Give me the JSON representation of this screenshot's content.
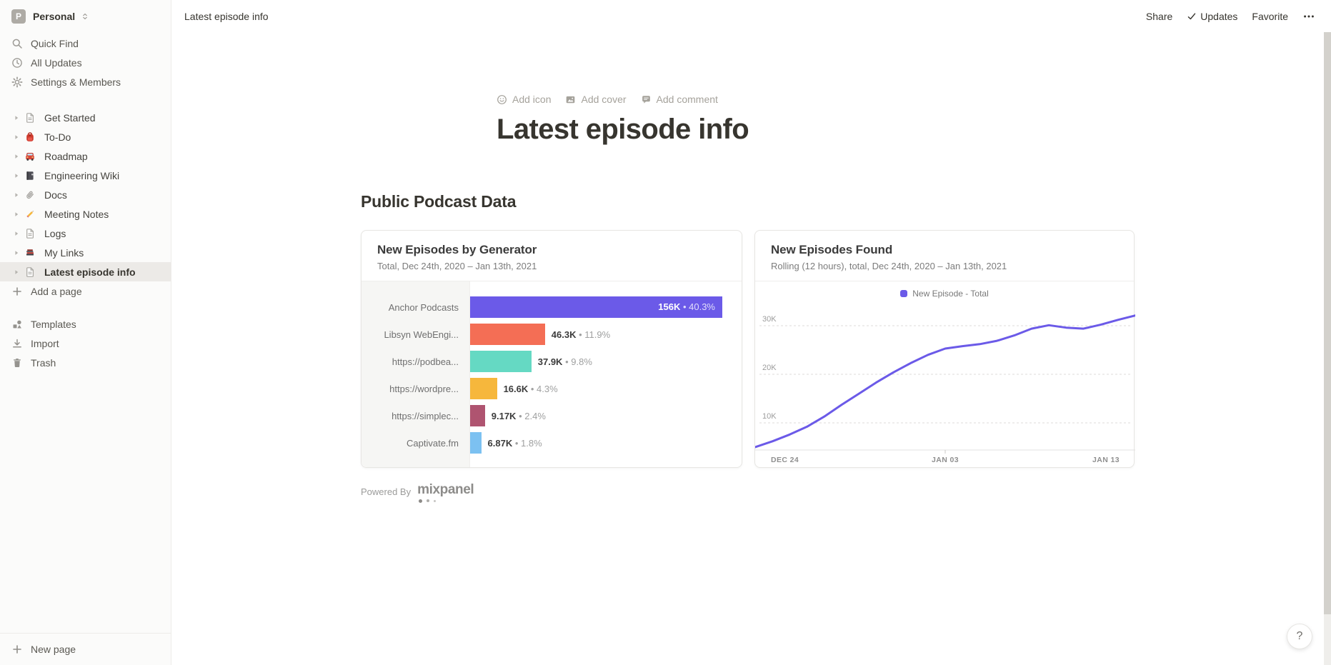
{
  "topbar": {
    "breadcrumb": "Latest episode info",
    "share_label": "Share",
    "updates_label": "Updates",
    "favorite_label": "Favorite"
  },
  "sidebar": {
    "workspace": {
      "name": "Personal",
      "initial": "P"
    },
    "menu": [
      {
        "label": "Quick Find",
        "icon": "search"
      },
      {
        "label": "All Updates",
        "icon": "clock"
      },
      {
        "label": "Settings & Members",
        "icon": "gear"
      }
    ],
    "pages": [
      {
        "label": "Get Started",
        "icon": "page",
        "selected": false
      },
      {
        "label": "To-Do",
        "icon": "backpack",
        "selected": false
      },
      {
        "label": "Roadmap",
        "icon": "car",
        "selected": false
      },
      {
        "label": "Engineering Wiki",
        "icon": "notebook",
        "selected": false
      },
      {
        "label": "Docs",
        "icon": "paperclip",
        "selected": false
      },
      {
        "label": "Meeting Notes",
        "icon": "pencil",
        "selected": false
      },
      {
        "label": "Logs",
        "icon": "page",
        "selected": false
      },
      {
        "label": "My Links",
        "icon": "books",
        "selected": false
      },
      {
        "label": "Latest episode info",
        "icon": "page",
        "selected": true
      }
    ],
    "add_page": "Add a page",
    "footer": [
      {
        "label": "Templates",
        "icon": "templates"
      },
      {
        "label": "Import",
        "icon": "import"
      },
      {
        "label": "Trash",
        "icon": "trash"
      }
    ],
    "new_page": "New page"
  },
  "page": {
    "actions": [
      {
        "label": "Add icon",
        "icon": "smiley"
      },
      {
        "label": "Add cover",
        "icon": "image"
      },
      {
        "label": "Add comment",
        "icon": "comment"
      }
    ],
    "title": "Latest episode info",
    "section_heading": "Public Podcast Data",
    "powered_by": "Powered By",
    "brand": "mixpanel"
  },
  "chart_data": [
    {
      "type": "bar",
      "orientation": "horizontal",
      "title": "New Episodes by Generator",
      "subtitle": "Total, Dec 24th, 2020 – Jan 13th, 2021",
      "separator": "•",
      "rows": [
        {
          "label": "Anchor Podcasts",
          "value_label": "156K",
          "percent": "40.3%",
          "value_k": 156,
          "color": "#6B5AE8"
        },
        {
          "label": "Libsyn WebEngi...",
          "value_label": "46.3K",
          "percent": "11.9%",
          "value_k": 46.3,
          "color": "#F46E55"
        },
        {
          "label": "https://podbea...",
          "value_label": "37.9K",
          "percent": "9.8%",
          "value_k": 37.9,
          "color": "#65D9C3"
        },
        {
          "label": "https://wordpre...",
          "value_label": "16.6K",
          "percent": "4.3%",
          "value_k": 16.6,
          "color": "#F6B73C"
        },
        {
          "label": "https://simplec...",
          "value_label": "9.17K",
          "percent": "2.4%",
          "value_k": 9.17,
          "color": "#AF5470"
        },
        {
          "label": "Captivate.fm",
          "value_label": "6.87K",
          "percent": "1.8%",
          "value_k": 6.87,
          "color": "#7CC1F1"
        }
      ],
      "max_value_k": 156
    },
    {
      "type": "line",
      "title": "New Episodes Found",
      "subtitle": "Rolling (12 hours), total, Dec 24th, 2020 – Jan 13th, 2021",
      "legend": [
        {
          "label": "New Episode - Total",
          "color": "#6B5AE8"
        }
      ],
      "line_color": "#6B5AE8",
      "y_ticks": [
        {
          "label": "30K",
          "value": 30
        },
        {
          "label": "20K",
          "value": 20
        },
        {
          "label": "10K",
          "value": 10
        }
      ],
      "x_ticks": [
        "DEC 24",
        "JAN 03",
        "JAN 13"
      ],
      "x_range": [
        "Dec 24th, 2020",
        "Jan 13th, 2021"
      ],
      "ylim": [
        0,
        35
      ],
      "grid": true,
      "values_k": [
        5.0,
        6.2,
        7.6,
        9.2,
        11.3,
        13.7,
        16.0,
        18.3,
        20.4,
        22.3,
        24.0,
        25.3,
        25.8,
        26.2,
        26.9,
        28.0,
        29.4,
        30.1,
        29.6,
        29.4,
        30.2,
        31.2,
        32.1
      ]
    }
  ],
  "help_label": "?"
}
